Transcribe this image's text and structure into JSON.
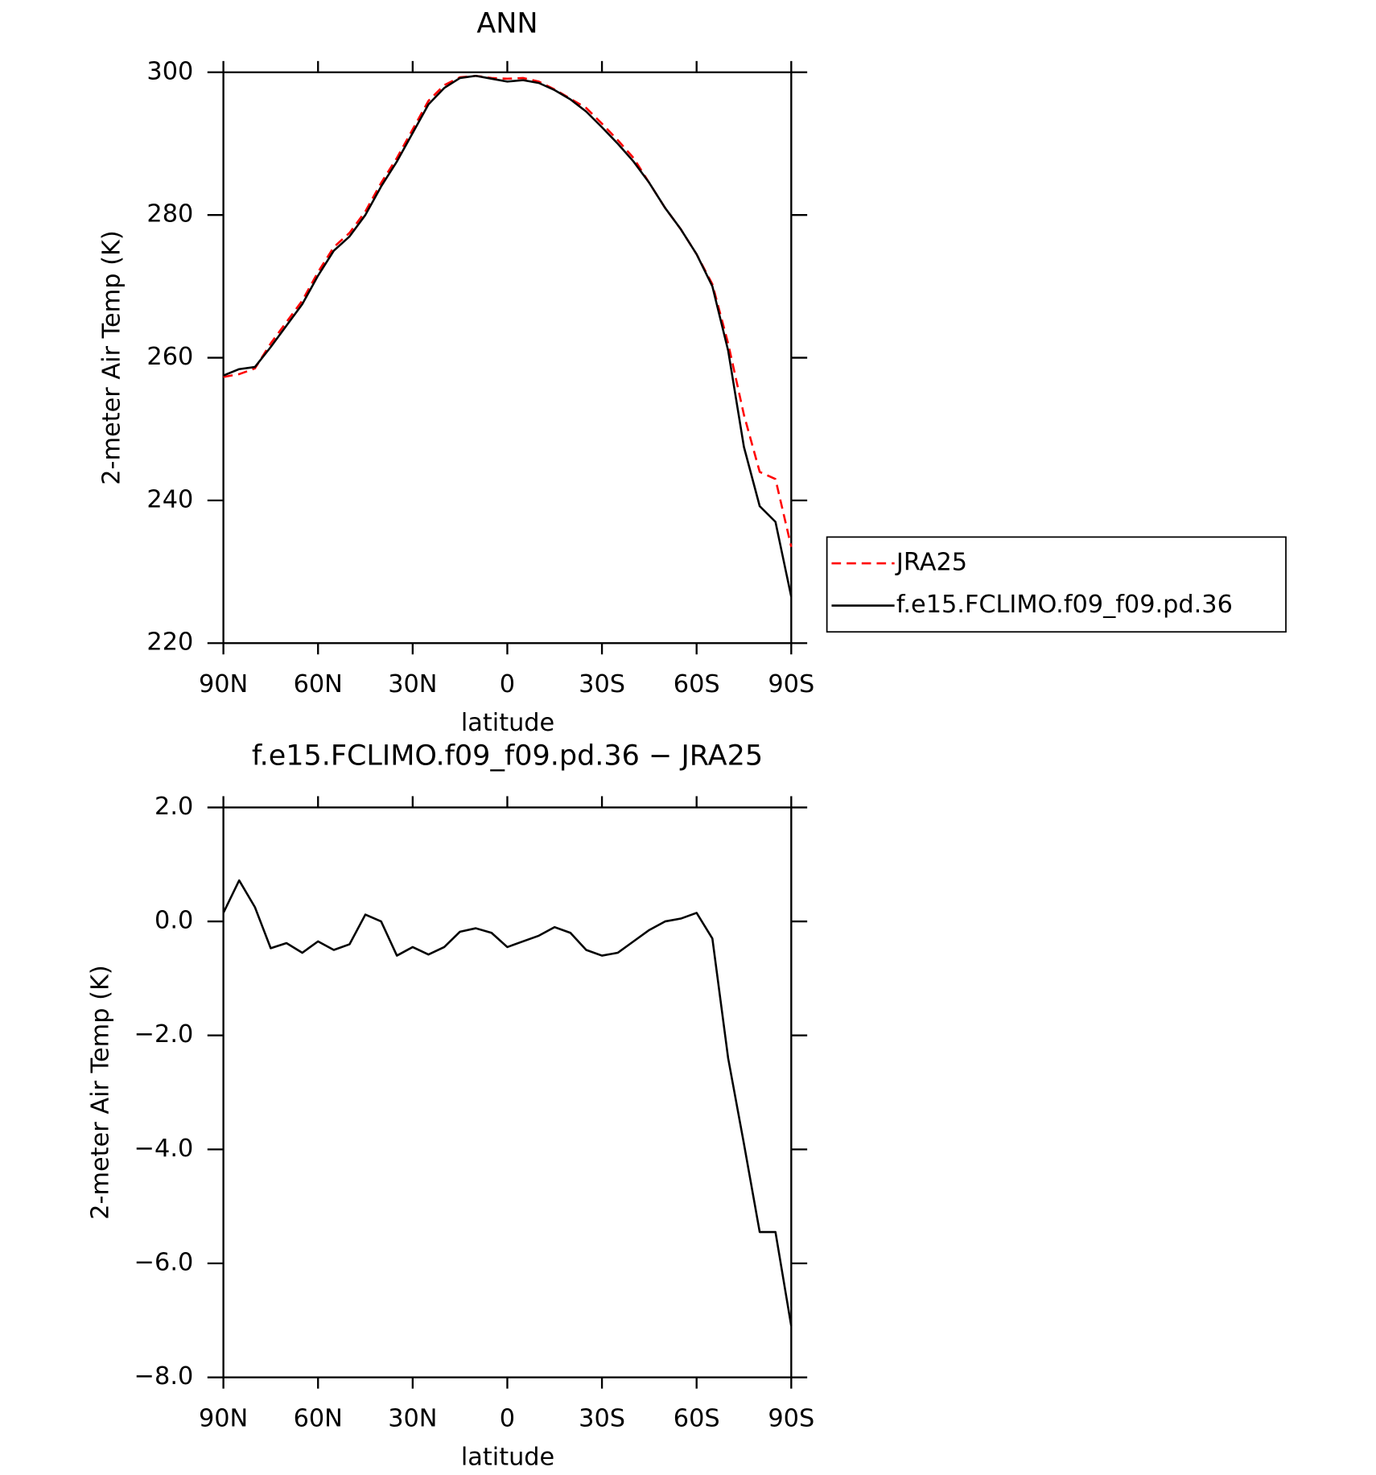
{
  "chart_data": [
    {
      "type": "line",
      "title": "ANN",
      "xlabel": "latitude",
      "ylabel": "2-meter Air Temp (K)",
      "x": [
        90,
        85,
        80,
        75,
        70,
        65,
        60,
        55,
        50,
        45,
        40,
        35,
        30,
        25,
        20,
        15,
        10,
        5,
        0,
        -5,
        -10,
        -15,
        -20,
        -25,
        -30,
        -35,
        -40,
        -45,
        -50,
        -55,
        -60,
        -65,
        -70,
        -75,
        -80,
        -85,
        -90
      ],
      "series": [
        {
          "name": "JRA25",
          "color": "#ff0000",
          "line_style": "dashed",
          "values": [
            257.3,
            257.7,
            258.5,
            262,
            265,
            268,
            272,
            275.5,
            277.5,
            280.5,
            284.5,
            288,
            292,
            296,
            298.2,
            299.3,
            299.5,
            299.2,
            299.1,
            299.2,
            298.7,
            297.6,
            296.3,
            295,
            292.8,
            290.5,
            288,
            284.5,
            281,
            278,
            274.5,
            270.3,
            262,
            252,
            244,
            243,
            233.5
          ]
        },
        {
          "name": "f.e15.FCLIMO.f09_f09.pd.36",
          "color": "#000000",
          "line_style": "solid",
          "values": [
            257.5,
            258.4,
            258.7,
            261.5,
            264.5,
            267.5,
            271.5,
            275,
            277,
            280,
            284,
            287.5,
            291.5,
            295.5,
            297.8,
            299.2,
            299.5,
            299.1,
            298.7,
            298.9,
            298.5,
            297.5,
            296.2,
            294.5,
            292.3,
            290,
            287.5,
            284.5,
            281,
            278,
            274.5,
            270,
            261,
            247.5,
            239.2,
            237,
            226.5
          ]
        }
      ],
      "xlim": [
        90,
        -90
      ],
      "xticks": [
        {
          "value": 90,
          "label": "90N"
        },
        {
          "value": 60,
          "label": "60N"
        },
        {
          "value": 30,
          "label": "30N"
        },
        0,
        {
          "value": -30,
          "label": "30S"
        },
        {
          "value": -60,
          "label": "60S"
        },
        {
          "value": -90,
          "label": "90S"
        }
      ],
      "ylim": [
        220,
        300
      ],
      "yticks": [
        220,
        240,
        260,
        280,
        300
      ],
      "legend": "right"
    },
    {
      "type": "line",
      "title": "f.e15.FCLIMO.f09_f09.pd.36 − JRA25",
      "xlabel": "latitude",
      "ylabel": "2-meter Air Temp (K)",
      "x": [
        90,
        85,
        80,
        75,
        70,
        65,
        60,
        55,
        50,
        45,
        40,
        35,
        30,
        25,
        20,
        15,
        10,
        5,
        0,
        -5,
        -10,
        -15,
        -20,
        -25,
        -30,
        -35,
        -40,
        -45,
        -50,
        -55,
        -60,
        -65,
        -70,
        -75,
        -80,
        -85,
        -90
      ],
      "series": [
        {
          "color": "#000000",
          "line_style": "solid",
          "values": [
            0.15,
            0.72,
            0.25,
            -0.47,
            -0.38,
            -0.55,
            -0.35,
            -0.5,
            -0.4,
            0.12,
            0.0,
            -0.6,
            -0.45,
            -0.58,
            -0.45,
            -0.18,
            -0.12,
            -0.2,
            -0.45,
            -0.35,
            -0.25,
            -0.1,
            -0.2,
            -0.5,
            -0.6,
            -0.55,
            -0.35,
            -0.15,
            0.0,
            0.05,
            0.15,
            -0.3,
            -2.4,
            -3.9,
            -5.45,
            -5.45,
            -7.1
          ]
        }
      ],
      "xlim": [
        90,
        -90
      ],
      "xticks": [
        {
          "value": 90,
          "label": "90N"
        },
        {
          "value": 60,
          "label": "60N"
        },
        {
          "value": 30,
          "label": "30N"
        },
        0,
        {
          "value": -30,
          "label": "30S"
        },
        {
          "value": -60,
          "label": "60S"
        },
        {
          "value": -90,
          "label": "90S"
        }
      ],
      "ylim": [
        -8,
        2
      ],
      "yticks": [
        {
          "value": -8,
          "label": "−8.0"
        },
        {
          "value": -6,
          "label": "−6.0"
        },
        {
          "value": -4,
          "label": "−4.0"
        },
        {
          "value": -2,
          "label": "−2.0"
        },
        {
          "value": 0,
          "label": "0.0"
        },
        {
          "value": 2,
          "label": "2.0"
        }
      ]
    }
  ]
}
